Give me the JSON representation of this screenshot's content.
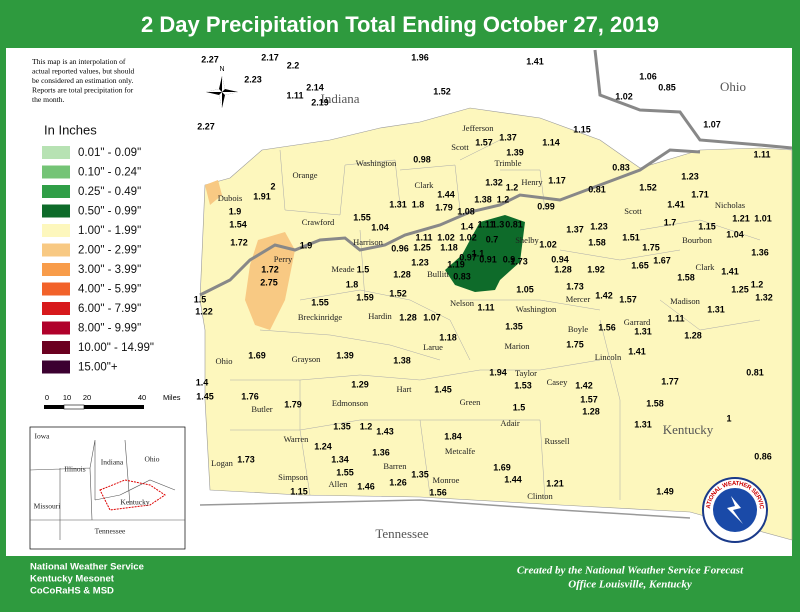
{
  "title": "2 Day Precipitation Total Ending October 27, 2019",
  "note": [
    "This map is an interpolation of",
    "actual reported values, but should",
    "be considered an estimation only.",
    "Reports are total precipitation for",
    "the month."
  ],
  "compass": "N",
  "legend": {
    "title": "In Inches",
    "items": [
      {
        "label": "0.01\" - 0.09\"",
        "color": "#b7e2b3"
      },
      {
        "label": "0.10\" - 0.24\"",
        "color": "#74c476"
      },
      {
        "label": "0.25\" - 0.49\"",
        "color": "#2f9e47"
      },
      {
        "label": "0.50\" - 0.99\"",
        "color": "#0e6b2a"
      },
      {
        "label": "1.00\" - 1.99\"",
        "color": "#fdf7bd"
      },
      {
        "label": "2.00\" - 2.99\"",
        "color": "#f8c983"
      },
      {
        "label": "3.00\" - 3.99\"",
        "color": "#f89c4a"
      },
      {
        "label": "4.00\" - 5.99\"",
        "color": "#f2622a"
      },
      {
        "label": "6.00\" - 7.99\"",
        "color": "#d7191c"
      },
      {
        "label": "8.00\" - 9.99\"",
        "color": "#b0002a"
      },
      {
        "label": "10.00\" - 14.99\"",
        "color": "#6b0020"
      },
      {
        "label": "15.00\"+",
        "color": "#3b0030"
      }
    ]
  },
  "scale": [
    "0",
    "10",
    "20",
    "40",
    "Miles"
  ],
  "states": [
    "Indiana",
    "Ohio",
    "Kentucky",
    "Tennessee"
  ],
  "counties": [
    "Dubois",
    "Orange",
    "Washington",
    "Scott",
    "Jefferson",
    "Clark",
    "Trimble",
    "Henry",
    "Crawford",
    "Harrison",
    "Perry",
    "Meade",
    "Bullitt",
    "Nelson",
    "Shelby",
    "Scott",
    "Nicholas",
    "Bourbon",
    "Clark",
    "Mercer",
    "Madison",
    "Garrard",
    "Boyle",
    "Lincoln",
    "Washington",
    "Breckinridge",
    "Hardin",
    "Larue",
    "Marion",
    "Ohio",
    "Grayson",
    "Taylor",
    "Casey",
    "Hart",
    "Green",
    "Butler",
    "Edmonson",
    "Adair",
    "Russell",
    "Metcalfe",
    "Warren",
    "Barren",
    "Logan",
    "Simpson",
    "Allen",
    "Monroe",
    "Clinton"
  ],
  "readings": [
    2.27,
    2.17,
    2.2,
    1.96,
    1.41,
    2.23,
    1.11,
    2.14,
    2.19,
    1.52,
    1.06,
    0.85,
    1.02,
    2.27,
    1.07,
    1.15,
    1.14,
    1.57,
    1.37,
    1.39,
    0.98,
    0.83,
    1.11,
    1.32,
    1.2,
    1.17,
    0.81,
    1.52,
    1.23,
    1.71,
    1.91,
    2,
    1.44,
    1.38,
    1.2,
    1.31,
    1.8,
    1.79,
    1.08,
    0.99,
    1.41,
    1.21,
    1.01,
    1.9,
    1.55,
    1.4,
    1.11,
    1.3,
    0.81,
    1.23,
    1.7,
    1.15,
    1.04,
    1.54,
    1.04,
    1.11,
    1.02,
    1.02,
    0.7,
    1.37,
    1.58,
    1.51,
    1.75,
    1.72,
    1.9,
    0.96,
    1.25,
    1.18,
    1.1,
    0.97,
    0.91,
    0.9,
    1.02,
    0.94,
    1.36,
    1.23,
    1.19,
    1.73,
    1.28,
    1.92,
    1.65,
    1.67,
    1.58,
    1.41,
    1.72,
    1.28,
    1.5,
    0.83,
    1.2,
    2.75,
    1.8,
    1.05,
    1.73,
    1.25,
    1.32,
    1.5,
    1.59,
    1.52,
    1.42,
    1.57,
    1.22,
    1.55,
    1.11,
    1.28,
    1.07,
    1.11,
    1.31,
    1.35,
    1.56,
    1.31,
    1.18,
    1.28,
    1.75,
    1.69,
    1.39,
    1.38,
    1.41,
    1.94,
    0.81,
    1.4,
    1.29,
    1.45,
    1.53,
    1.42,
    1.77,
    1.45,
    1.76,
    1.79,
    1.57,
    1.5,
    1.28,
    1.58,
    1.35,
    1.2,
    1.43,
    1.84,
    1.31,
    1,
    1.24,
    1.36,
    1.34,
    1.73,
    0.86,
    1.69,
    1.55,
    1.35,
    1.26,
    1.46,
    1.44,
    1.21,
    1.56,
    1.15,
    1.49
  ],
  "inset": [
    "Iowa",
    "Illinois",
    "Indiana",
    "Ohio",
    "Missouri",
    "Kentucky",
    "Tennessee"
  ],
  "logo": "NATIONAL WEATHER SERVICE",
  "footer": {
    "left": [
      "National Weather Service",
      "Kentucky Mesonet",
      "CoCoRaHS & MSD"
    ],
    "right": [
      "Created by the National Weather Service Forecast",
      "Office Louisville, Kentucky"
    ]
  }
}
